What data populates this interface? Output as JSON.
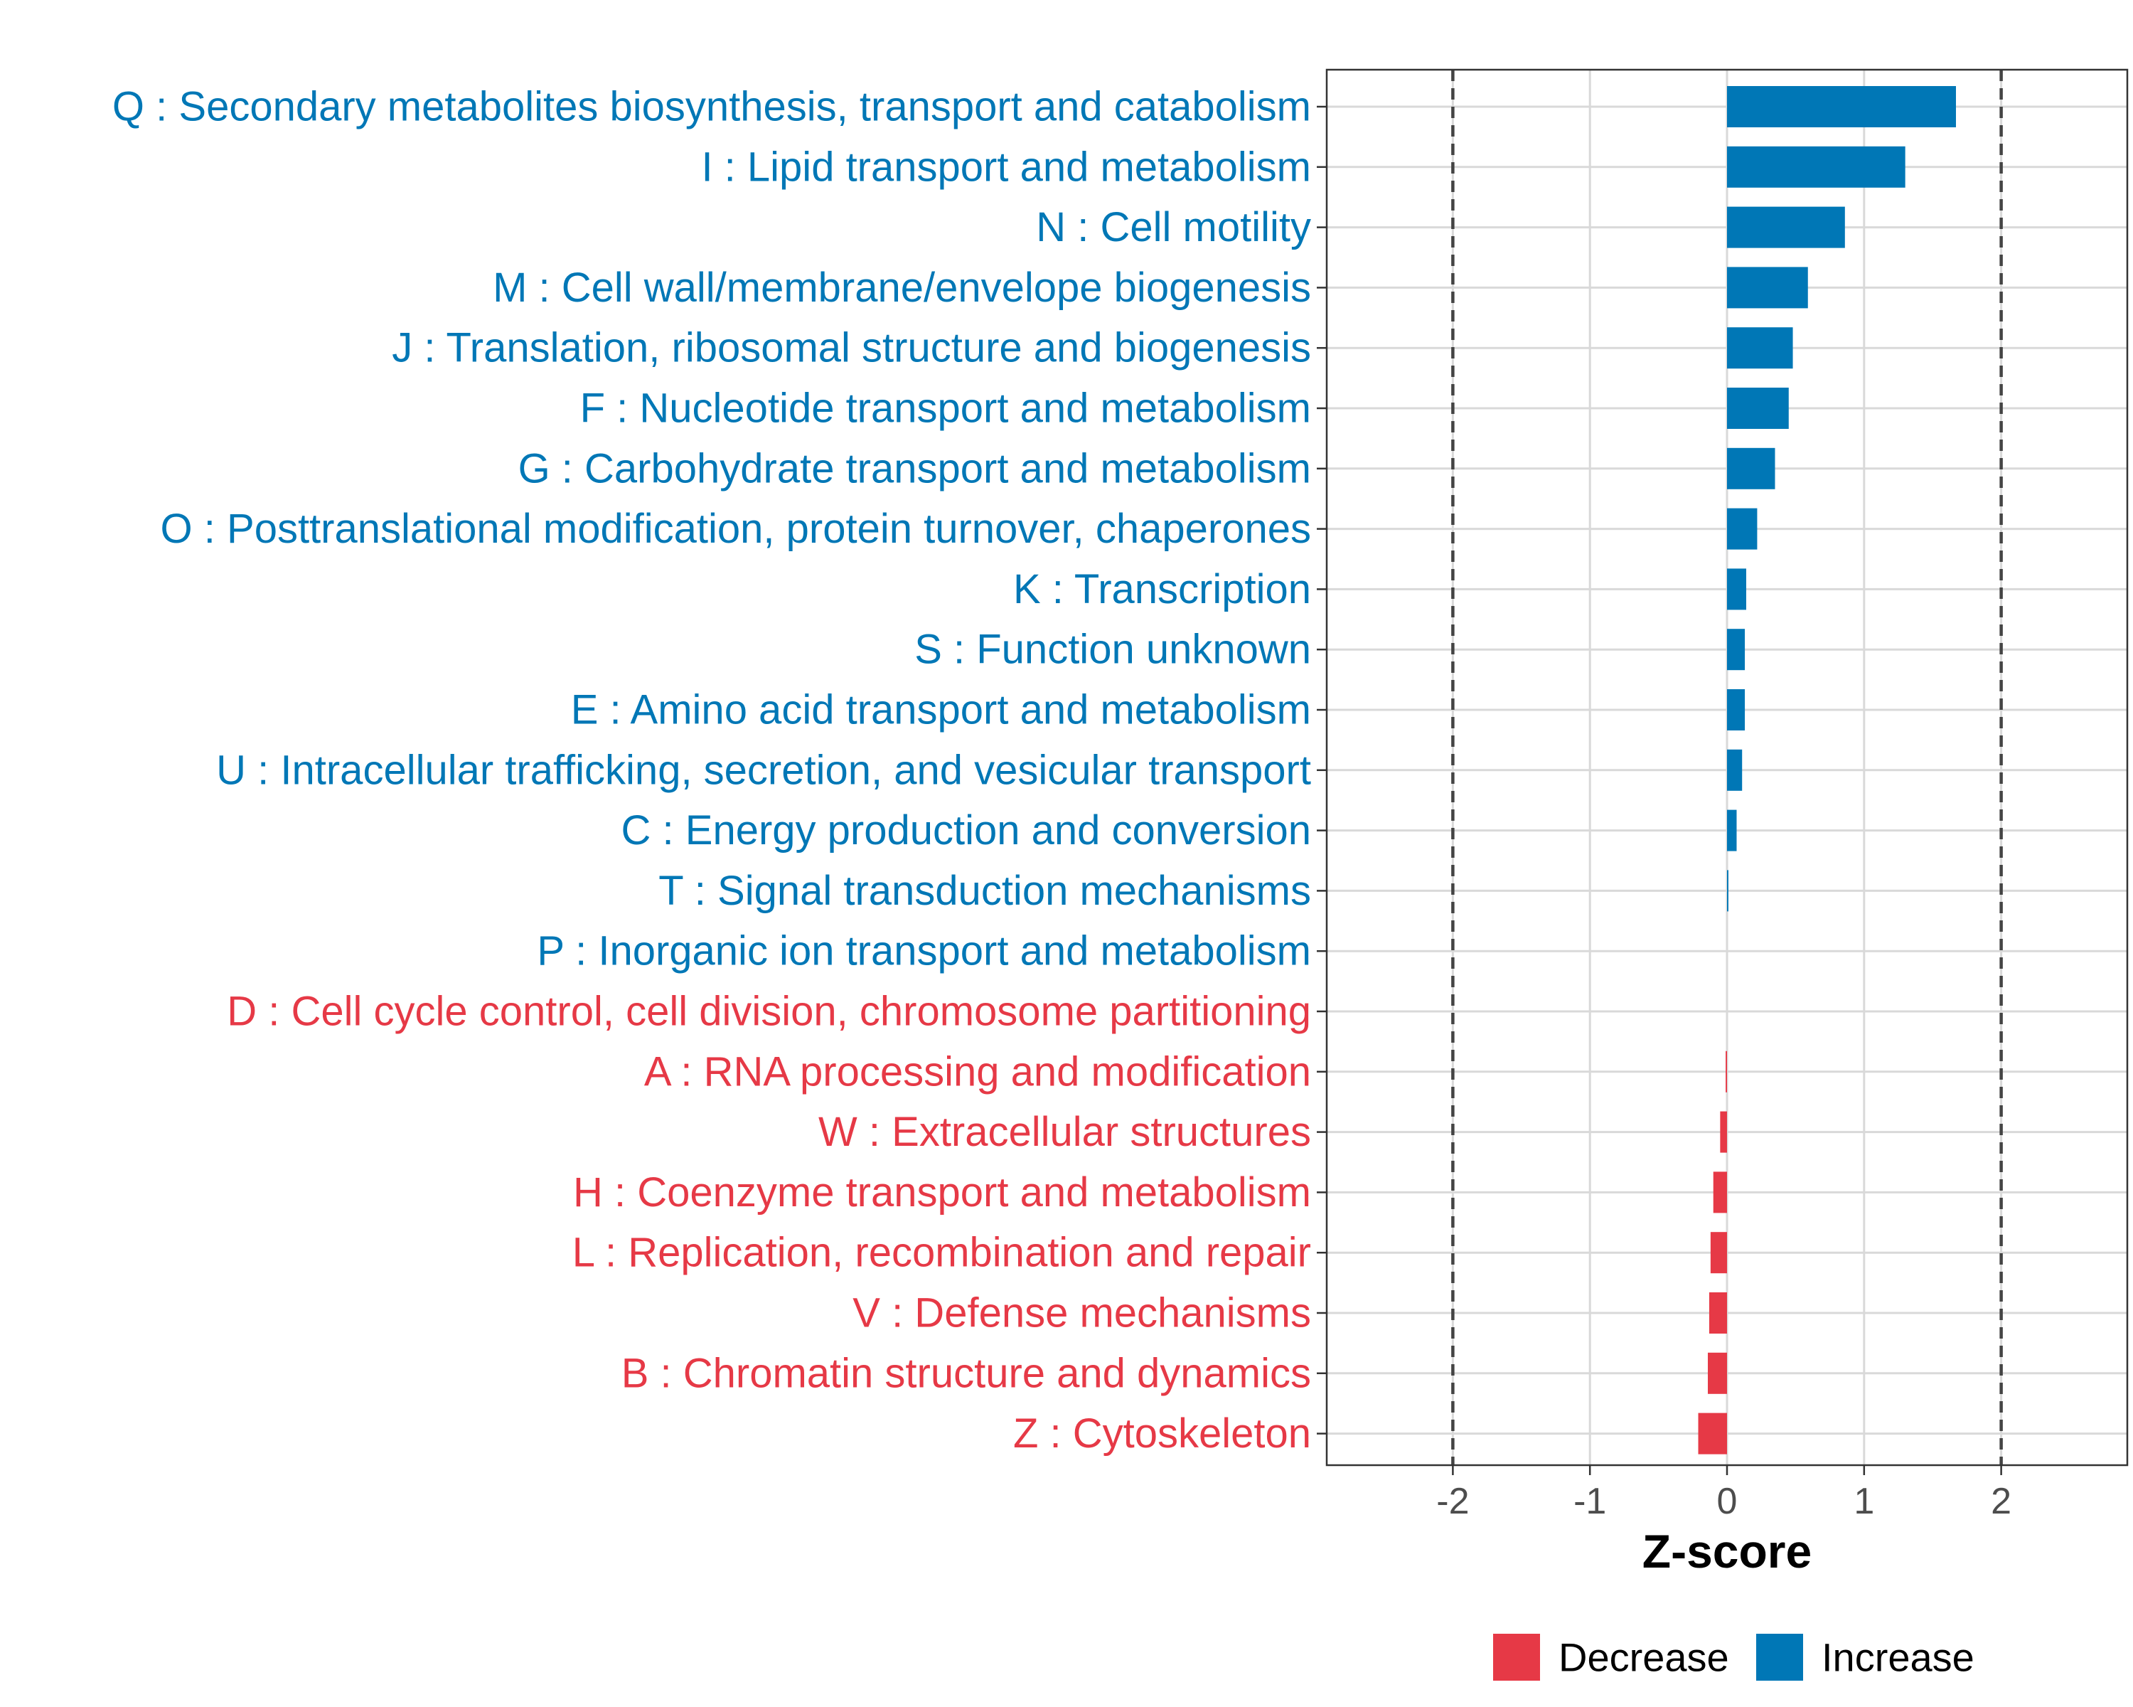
{
  "chart_data": {
    "type": "bar",
    "orientation": "horizontal",
    "title": "",
    "xlabel": "Z-score",
    "ylabel": "",
    "xlim": [
      -2.92,
      2.92
    ],
    "xticks": [
      -2,
      -1,
      0,
      1,
      2
    ],
    "xtick_labels": [
      "-2",
      "-1",
      "0",
      "1",
      "2"
    ],
    "reference_lines": [
      -2,
      2
    ],
    "grid": true,
    "colors": {
      "Increase": "#0077b6",
      "Decrease": "#e63946"
    },
    "legend": {
      "position": "bottom",
      "entries": [
        {
          "label": "Decrease",
          "color": "#e63946"
        },
        {
          "label": "Increase",
          "color": "#0077b6"
        }
      ]
    },
    "categories": [
      "Q : Secondary metabolites biosynthesis, transport and catabolism",
      "I : Lipid transport and metabolism",
      "N : Cell motility",
      "M : Cell wall/membrane/envelope biogenesis",
      "J : Translation, ribosomal structure and biogenesis",
      "F : Nucleotide transport and metabolism",
      "G : Carbohydrate transport and metabolism",
      "O : Posttranslational modification, protein turnover, chaperones",
      "K : Transcription",
      "S : Function unknown",
      "E : Amino acid transport and metabolism",
      "U : Intracellular trafficking, secretion, and vesicular transport",
      "C : Energy production and conversion",
      "T : Signal transduction mechanisms",
      "P : Inorganic ion transport and metabolism",
      "D : Cell cycle control, cell division, chromosome partitioning",
      "A : RNA processing and modification",
      "W : Extracellular structures",
      "H : Coenzyme transport and metabolism",
      "L : Replication, recombination and repair",
      "V : Defense mechanisms",
      "B : Chromatin structure and dynamics",
      "Z : Cytoskeleton"
    ],
    "values": [
      1.67,
      1.3,
      0.86,
      0.59,
      0.48,
      0.45,
      0.35,
      0.22,
      0.14,
      0.13,
      0.13,
      0.11,
      0.07,
      0.01,
      0.0,
      0.0,
      -0.01,
      -0.05,
      -0.1,
      -0.12,
      -0.13,
      -0.14,
      -0.21
    ],
    "groups": [
      "Increase",
      "Increase",
      "Increase",
      "Increase",
      "Increase",
      "Increase",
      "Increase",
      "Increase",
      "Increase",
      "Increase",
      "Increase",
      "Increase",
      "Increase",
      "Increase",
      "Increase",
      "Decrease",
      "Decrease",
      "Decrease",
      "Decrease",
      "Decrease",
      "Decrease",
      "Decrease",
      "Decrease"
    ]
  }
}
